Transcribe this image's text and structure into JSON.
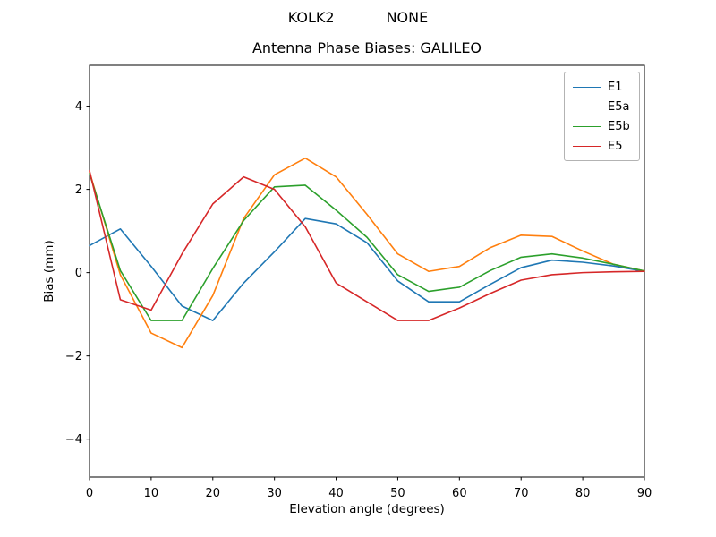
{
  "title": {
    "left": "KOLK2",
    "right": "NONE"
  },
  "subtitle": "Antenna Phase Biases: GALILEO",
  "xlabel": "Elevation angle (degrees)",
  "ylabel": "Bias (mm)",
  "axis_color": "#000000",
  "background_color": "#ffffff",
  "chart_data": {
    "type": "line",
    "title": "Antenna Phase Biases: GALILEO",
    "suptitle": "KOLK2          NONE",
    "xlabel": "Elevation angle (degrees)",
    "ylabel": "Bias (mm)",
    "xlim": [
      0,
      90
    ],
    "ylim": [
      -4.91,
      4.98
    ],
    "xticks": [
      0,
      10,
      20,
      30,
      40,
      50,
      60,
      70,
      80,
      90
    ],
    "yticks": [
      -4,
      -2,
      0,
      2,
      4
    ],
    "grid": false,
    "legend_position": "upper right",
    "x": [
      0,
      5,
      10,
      15,
      20,
      25,
      30,
      35,
      40,
      45,
      50,
      55,
      60,
      65,
      70,
      75,
      80,
      85,
      90
    ],
    "series": [
      {
        "name": "E1",
        "color": "#1f77b4",
        "values": [
          0.65,
          1.05,
          0.15,
          -0.8,
          -1.15,
          -0.25,
          0.5,
          1.3,
          1.17,
          0.72,
          -0.2,
          -0.7,
          -0.7,
          -0.28,
          0.12,
          0.3,
          0.25,
          0.16,
          0.03
        ]
      },
      {
        "name": "E5a",
        "color": "#ff7f0e",
        "values": [
          2.42,
          -0.05,
          -1.45,
          -1.8,
          -0.55,
          1.3,
          2.35,
          2.75,
          2.3,
          1.4,
          0.45,
          0.03,
          0.15,
          0.6,
          0.9,
          0.87,
          0.52,
          0.2,
          0.04
        ]
      },
      {
        "name": "E5b",
        "color": "#2ca02c",
        "values": [
          2.38,
          0.05,
          -1.15,
          -1.15,
          0.1,
          1.25,
          2.06,
          2.1,
          1.5,
          0.85,
          -0.05,
          -0.45,
          -0.35,
          0.05,
          0.37,
          0.45,
          0.35,
          0.2,
          0.04
        ]
      },
      {
        "name": "E5",
        "color": "#d62728",
        "values": [
          2.45,
          -0.65,
          -0.9,
          0.45,
          1.65,
          2.3,
          2.0,
          1.1,
          -0.25,
          -0.7,
          -1.15,
          -1.15,
          -0.85,
          -0.5,
          -0.18,
          -0.05,
          0.0,
          0.02,
          0.03
        ]
      }
    ]
  }
}
